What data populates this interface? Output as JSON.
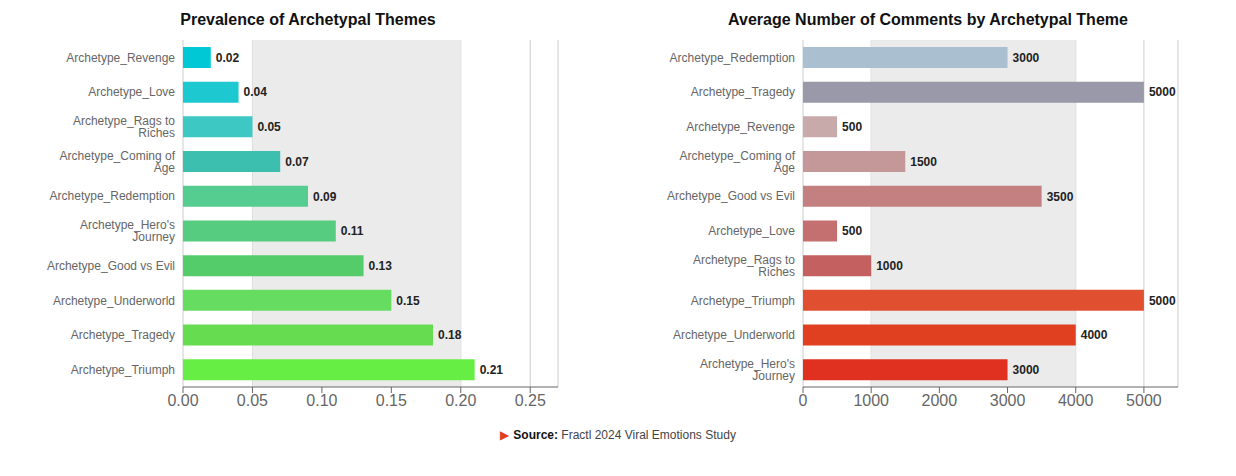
{
  "chart_data": [
    {
      "type": "bar",
      "orientation": "horizontal",
      "title": "Prevalence of Archetypal Themes",
      "categories": [
        "Archetype_Revenge",
        "Archetype_Love",
        "Archetype_Rags to Riches",
        "Archetype_Coming of Age",
        "Archetype_Redemption",
        "Archetype_Hero's Journey",
        "Archetype_Good vs Evil",
        "Archetype_Underworld",
        "Archetype_Tragedy",
        "Archetype_Triumph"
      ],
      "values": [
        0.02,
        0.04,
        0.05,
        0.07,
        0.09,
        0.11,
        0.13,
        0.15,
        0.18,
        0.21
      ],
      "colors": [
        "#00C8D4",
        "#1EC8D0",
        "#3DC8C4",
        "#3DBFB0",
        "#55CC90",
        "#55CC80",
        "#55CC6A",
        "#66DD60",
        "#66DD50",
        "#66EE44"
      ],
      "xlim": [
        0,
        0.27
      ],
      "xticks": [
        {
          "value": 0,
          "label": "0.00"
        },
        {
          "value": 0.05,
          "label": "0.05"
        },
        {
          "value": 0.1,
          "label": "0.10"
        },
        {
          "value": 0.15,
          "label": "0.15"
        },
        {
          "value": 0.2,
          "label": "0.20"
        },
        {
          "value": 0.25,
          "label": "0.25"
        }
      ],
      "grid": true,
      "data_labels": true,
      "band": {
        "from": 0.05,
        "to": 0.2,
        "color": "#EBEBEB"
      }
    },
    {
      "type": "bar",
      "orientation": "horizontal",
      "title": "Average Number of Comments by Archetypal Theme",
      "categories": [
        "Archetype_Redemption",
        "Archetype_Tragedy",
        "Archetype_Revenge",
        "Archetype_Coming of Age",
        "Archetype_Good vs Evil",
        "Archetype_Love",
        "Archetype_Rags to Riches",
        "Archetype_Triumph",
        "Archetype_Underworld",
        "Archetype_Hero's Journey"
      ],
      "values": [
        3000,
        5000,
        500,
        1500,
        3500,
        500,
        1000,
        5000,
        4000,
        3000
      ],
      "colors": [
        "#AABFCF",
        "#9999AA",
        "#C9AAAA",
        "#C49898",
        "#C48080",
        "#C47070",
        "#C46060",
        "#E05030",
        "#E04020",
        "#E03020"
      ],
      "xlim": [
        0,
        5500
      ],
      "xticks": [
        0,
        1000,
        2000,
        3000,
        4000,
        5000
      ],
      "grid": true,
      "data_labels": true,
      "band": {
        "from": 1000,
        "to": 4000,
        "color": "#EBEBEB"
      },
      "annotations": [
        "▶",
        "Source:",
        " Fractl 2024 Viral Emotions Study"
      ]
    }
  ]
}
